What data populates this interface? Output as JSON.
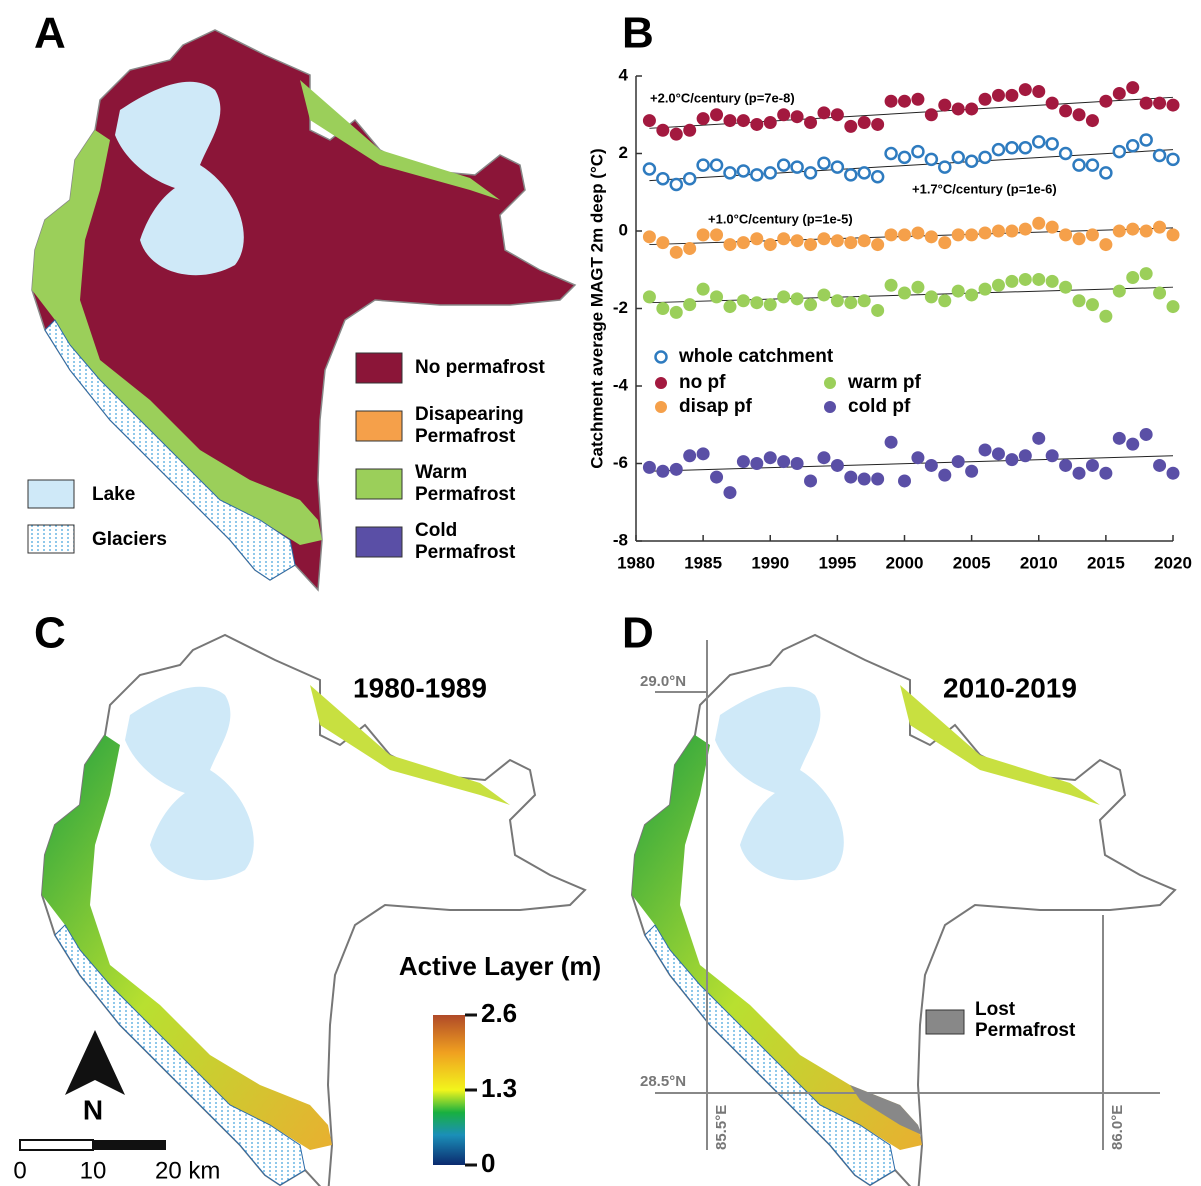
{
  "chart_data": {
    "type": "scatter",
    "panel": "B",
    "y_label": "Catchment average MAGT 2m deep (°C)",
    "xlim": [
      1980,
      2020
    ],
    "xticks": [
      1980,
      1985,
      1990,
      1995,
      2000,
      2005,
      2010,
      2015,
      2020
    ],
    "ylim": [
      -8,
      4
    ],
    "yticks": [
      -8,
      -6,
      -4,
      -2,
      0,
      2,
      4
    ],
    "x": [
      1981,
      1982,
      1983,
      1984,
      1985,
      1986,
      1987,
      1988,
      1989,
      1990,
      1991,
      1992,
      1993,
      1994,
      1995,
      1996,
      1997,
      1998,
      1999,
      2000,
      2001,
      2002,
      2003,
      2004,
      2005,
      2006,
      2007,
      2008,
      2009,
      2010,
      2011,
      2012,
      2013,
      2014,
      2015,
      2016,
      2017,
      2018,
      2019,
      2020
    ],
    "series": [
      {
        "name": "whole catchment",
        "color": "#2e7bbf",
        "hollow": true,
        "values": [
          1.6,
          1.35,
          1.2,
          1.35,
          1.7,
          1.7,
          1.5,
          1.55,
          1.45,
          1.5,
          1.7,
          1.65,
          1.5,
          1.75,
          1.65,
          1.45,
          1.5,
          1.4,
          2.0,
          1.9,
          2.05,
          1.85,
          1.65,
          1.9,
          1.8,
          1.9,
          2.1,
          2.15,
          2.15,
          2.3,
          2.25,
          2.0,
          1.7,
          1.7,
          1.5,
          2.05,
          2.2,
          2.35,
          1.95,
          1.85
        ]
      },
      {
        "name": "no pf",
        "color": "#a3193f",
        "values": [
          2.85,
          2.6,
          2.5,
          2.6,
          2.9,
          3.0,
          2.85,
          2.85,
          2.75,
          2.8,
          3.0,
          2.95,
          2.8,
          3.05,
          3.0,
          2.7,
          2.8,
          2.75,
          3.35,
          3.35,
          3.4,
          3.0,
          3.25,
          3.15,
          3.15,
          3.4,
          3.5,
          3.5,
          3.65,
          3.6,
          3.3,
          3.1,
          3.0,
          2.85,
          3.35,
          3.55,
          3.7,
          3.3,
          3.3,
          3.25
        ]
      },
      {
        "name": "disap pf",
        "color": "#f5a04a",
        "values": [
          -0.15,
          -0.3,
          -0.55,
          -0.45,
          -0.1,
          -0.1,
          -0.35,
          -0.3,
          -0.2,
          -0.35,
          -0.2,
          -0.25,
          -0.35,
          -0.2,
          -0.25,
          -0.3,
          -0.25,
          -0.35,
          -0.1,
          -0.1,
          -0.05,
          -0.15,
          -0.3,
          -0.1,
          -0.1,
          -0.05,
          0.0,
          0.0,
          0.05,
          0.2,
          0.1,
          -0.1,
          -0.2,
          -0.1,
          -0.35,
          0.0,
          0.05,
          0.0,
          0.1,
          -0.1
        ]
      },
      {
        "name": "warm pf",
        "color": "#9bcf5a",
        "values": [
          -1.7,
          -2.0,
          -2.1,
          -1.9,
          -1.5,
          -1.7,
          -1.95,
          -1.8,
          -1.85,
          -1.9,
          -1.7,
          -1.75,
          -1.9,
          -1.65,
          -1.8,
          -1.85,
          -1.8,
          -2.05,
          -1.4,
          -1.6,
          -1.45,
          -1.7,
          -1.8,
          -1.55,
          -1.65,
          -1.5,
          -1.4,
          -1.3,
          -1.25,
          -1.25,
          -1.3,
          -1.45,
          -1.8,
          -1.9,
          -2.2,
          -1.55,
          -1.2,
          -1.1,
          -1.6,
          -1.95
        ]
      },
      {
        "name": "cold pf",
        "color": "#5a4fa6",
        "values": [
          -6.1,
          -6.2,
          -6.15,
          -5.8,
          -5.75,
          -6.35,
          -6.75,
          -5.95,
          -6.0,
          -5.85,
          -5.95,
          -6.0,
          -6.45,
          -5.85,
          -6.05,
          -6.35,
          -6.4,
          -6.4,
          -5.45,
          -6.45,
          -5.85,
          -6.05,
          -6.3,
          -5.95,
          -6.2,
          -5.65,
          -5.75,
          -5.9,
          -5.8,
          -5.35,
          -5.8,
          -6.05,
          -6.25,
          -6.05,
          -6.25,
          -5.35,
          -5.5,
          -5.25,
          -6.05,
          -6.25
        ]
      }
    ],
    "trends": [
      {
        "x": [
          1981,
          2020
        ],
        "values": [
          1.3,
          2.1
        ]
      },
      {
        "x": [
          1981,
          2020
        ],
        "values": [
          2.65,
          3.45
        ]
      },
      {
        "x": [
          1981,
          2020
        ],
        "values": [
          -0.35,
          0.08
        ]
      },
      {
        "x": [
          1981,
          2020
        ],
        "values": [
          -1.85,
          -1.45
        ]
      },
      {
        "x": [
          1981,
          2020
        ],
        "values": [
          -6.2,
          -5.8
        ]
      }
    ],
    "annotations": [
      "+2.0°C/century (p=7e-8)",
      "+1.7°C/century (p=1e-6)",
      "+1.0°C/century (p=1e-5)"
    ]
  },
  "panel_a": {
    "label": "A",
    "legend": [
      {
        "label": [
          "No permafrost"
        ]
      },
      {
        "label": [
          "Disapearing",
          "Permafrost"
        ]
      },
      {
        "label": [
          "Warm",
          "Permafrost"
        ]
      },
      {
        "label": [
          "Cold",
          "Permafrost"
        ]
      }
    ],
    "legend_left": [
      "Lake",
      "Glaciers"
    ]
  },
  "panel_c": {
    "label": "C",
    "period": "1980-1989",
    "colorbar_title": "Active Layer (m)",
    "colorbar_ticks": [
      0,
      1.3,
      2.6
    ],
    "colorbar_lim": [
      0,
      2.6
    ],
    "north": "N",
    "scale_labels": [
      "0",
      "10",
      "20 km"
    ]
  },
  "panel_d": {
    "label": "D",
    "period": "2010-2019",
    "legend": [
      "Lost",
      "Permafrost"
    ],
    "lat_labels": [
      "29.0°N",
      "28.5°N"
    ],
    "lon_labels": [
      "85.5°E",
      "86.0°E"
    ]
  }
}
